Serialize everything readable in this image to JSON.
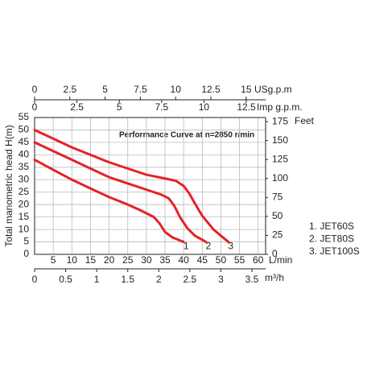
{
  "chart_data": {
    "type": "line",
    "title": "Performance Curve at n=2850 r/min",
    "y_label": "Total manometric head H(m)",
    "x_label": "L/min",
    "xlim": [
      0,
      62
    ],
    "xticks": [
      5,
      10,
      15,
      20,
      25,
      30,
      35,
      40,
      45,
      50,
      55,
      60
    ],
    "ylim": [
      0,
      55
    ],
    "yticks": [
      0,
      5,
      10,
      15,
      20,
      25,
      30,
      35,
      40,
      45,
      50,
      55
    ],
    "y2_label": "Feet",
    "y2lim": [
      0,
      180.4
    ],
    "y2ticks": [
      0,
      25,
      50,
      75,
      100,
      125,
      150,
      175
    ],
    "extra_x_axes": [
      {
        "label": "USg.p.m",
        "xlim": [
          0,
          16.38
        ],
        "xticks": [
          0,
          2.5,
          5,
          7.5,
          10,
          12.5,
          15
        ]
      },
      {
        "label": "Imp g.p.m.",
        "xlim": [
          0,
          13.64
        ],
        "xticks": [
          0,
          2.5,
          5,
          7.5,
          10,
          12.5
        ]
      },
      {
        "label": "m³/h",
        "xlim": [
          0,
          3.72
        ],
        "xticks": [
          0,
          0.5,
          1,
          1.5,
          2,
          2.5,
          3,
          3.5
        ]
      }
    ],
    "grid": true,
    "series": [
      {
        "name": "1. JET60S",
        "label": "1",
        "color": "#e52229",
        "x": [
          0,
          5,
          10,
          15,
          20,
          25,
          28,
          30,
          32,
          33.5,
          35,
          37,
          40
        ],
        "values": [
          38,
          34,
          30,
          26.5,
          23,
          20,
          18,
          16.5,
          15,
          12.5,
          9,
          6.8,
          5
        ]
      },
      {
        "name": "2. JET80S",
        "label": "2",
        "color": "#e52229",
        "x": [
          0,
          5,
          10,
          15,
          20,
          25,
          30,
          34,
          36,
          37.5,
          39,
          41,
          43,
          46
        ],
        "values": [
          45,
          41.5,
          38,
          34.5,
          31,
          28.5,
          26,
          24,
          22.5,
          19.5,
          15,
          10.5,
          7.5,
          5
        ]
      },
      {
        "name": "3. JET100S",
        "label": "3",
        "color": "#e52229",
        "x": [
          0,
          5,
          10,
          15,
          20,
          25,
          30,
          35,
          38,
          40,
          41.5,
          43,
          45,
          48,
          50,
          52
        ],
        "values": [
          50,
          46.5,
          43,
          40,
          37,
          34.5,
          32,
          30.5,
          29.5,
          27.5,
          24.5,
          20.5,
          15.5,
          10,
          7.5,
          5
        ]
      }
    ]
  }
}
